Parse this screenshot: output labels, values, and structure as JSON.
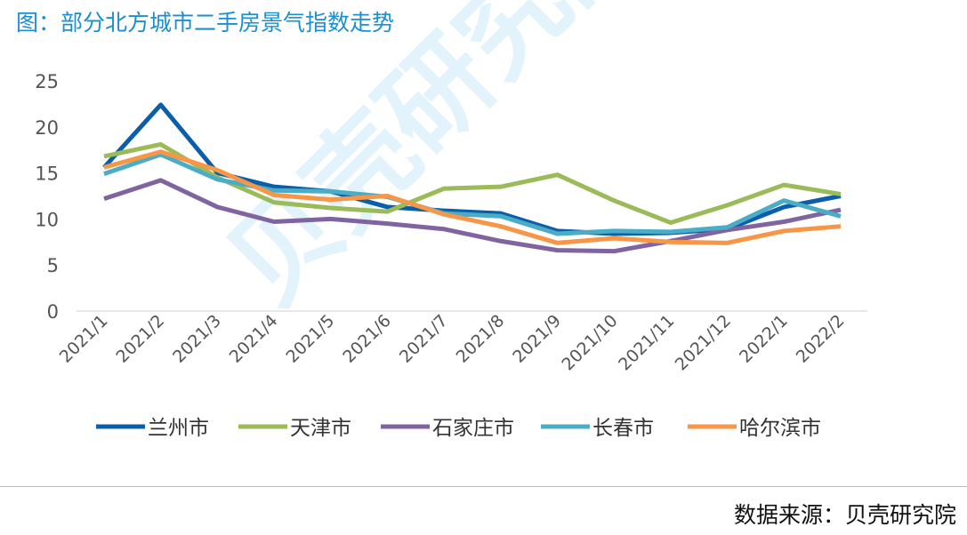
{
  "title": "图：部分北方城市二手房景气指数走势",
  "source": "数据来源：贝壳研究院",
  "watermark": "贝壳研究院",
  "chart_data": {
    "type": "line",
    "title": "图：部分北方城市二手房景气指数走势",
    "xlabel": "",
    "ylabel": "",
    "ylim": [
      0,
      25
    ],
    "yticks": [
      0,
      5,
      10,
      15,
      20,
      25
    ],
    "grid": false,
    "legend": "bottom",
    "categories": [
      "2021/1",
      "2021/2",
      "2021/3",
      "2021/4",
      "2021/5",
      "2021/6",
      "2021/7",
      "2021/8",
      "2021/9",
      "2021/10",
      "2021/11",
      "2021/12",
      "2022/1",
      "2022/2"
    ],
    "series": [
      {
        "name": "兰州市",
        "color": "#0b5eaa",
        "values": [
          15.6,
          22.4,
          15.0,
          13.5,
          13.0,
          11.3,
          10.9,
          10.6,
          8.7,
          8.4,
          8.5,
          8.9,
          11.3,
          12.5
        ]
      },
      {
        "name": "天津市",
        "color": "#9bbb59",
        "values": [
          16.8,
          18.1,
          14.5,
          11.8,
          11.2,
          10.8,
          13.3,
          13.5,
          14.8,
          12.0,
          9.6,
          11.5,
          13.7,
          12.7
        ]
      },
      {
        "name": "石家庄市",
        "color": "#8064a2",
        "values": [
          12.2,
          14.2,
          11.3,
          9.7,
          10.0,
          9.5,
          8.9,
          7.6,
          6.6,
          6.5,
          7.6,
          8.8,
          9.7,
          11.0
        ]
      },
      {
        "name": "长春市",
        "color": "#4bacc6",
        "values": [
          14.9,
          17.0,
          14.3,
          13.1,
          13.0,
          12.4,
          10.6,
          10.3,
          8.4,
          8.7,
          8.6,
          9.1,
          12.0,
          10.3
        ]
      },
      {
        "name": "哈尔滨市",
        "color": "#f79646",
        "values": [
          15.6,
          17.3,
          15.3,
          12.6,
          12.1,
          12.5,
          10.5,
          9.2,
          7.4,
          7.9,
          7.5,
          7.4,
          8.7,
          9.2
        ]
      }
    ]
  }
}
